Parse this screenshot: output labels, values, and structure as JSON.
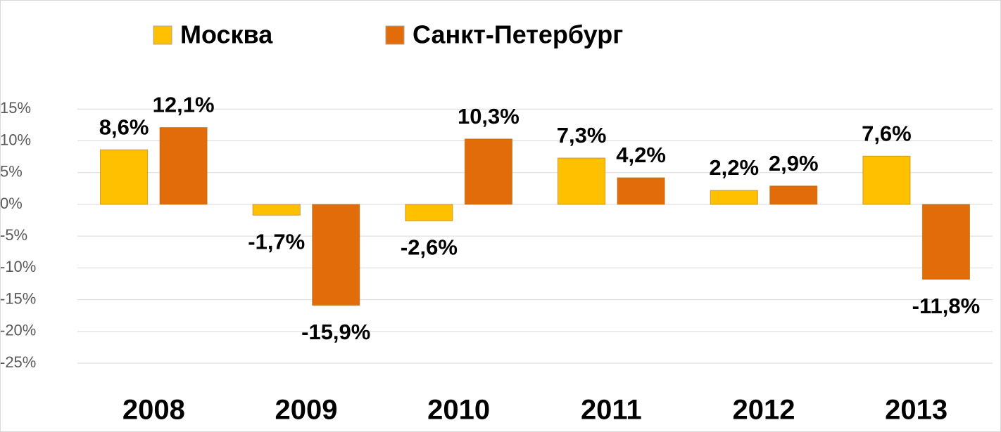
{
  "chart_data": {
    "type": "bar",
    "categories": [
      "2008",
      "2009",
      "2010",
      "2011",
      "2012",
      "2013"
    ],
    "series": [
      {
        "name": "Москва",
        "color": "#ffc000",
        "values": [
          8.6,
          -1.7,
          -2.6,
          7.3,
          2.2,
          7.6
        ],
        "value_labels": [
          "8,6%",
          "-1,7%",
          "-2,6%",
          "7,3%",
          "2,2%",
          "7,6%"
        ]
      },
      {
        "name": "Санкт-Петербург",
        "color": "#e36c0a",
        "values": [
          12.1,
          -15.9,
          10.3,
          4.2,
          2.9,
          -11.8
        ],
        "value_labels": [
          "12,1%",
          "-15,9%",
          "10,3%",
          "4,2%",
          "2,9%",
          "-11,8%"
        ]
      }
    ],
    "ylim": [
      -25,
      15
    ],
    "yticks": [
      {
        "value": -25,
        "label": "-25%"
      },
      {
        "value": -20,
        "label": "-20%"
      },
      {
        "value": -15,
        "label": "-15%"
      },
      {
        "value": -10,
        "label": "-10%"
      },
      {
        "value": -5,
        "label": "-5%"
      },
      {
        "value": 0,
        "label": "0%"
      },
      {
        "value": 5,
        "label": "5%"
      },
      {
        "value": 10,
        "label": "10%"
      },
      {
        "value": 15,
        "label": "15%"
      }
    ],
    "grid": true,
    "legend": "top"
  }
}
